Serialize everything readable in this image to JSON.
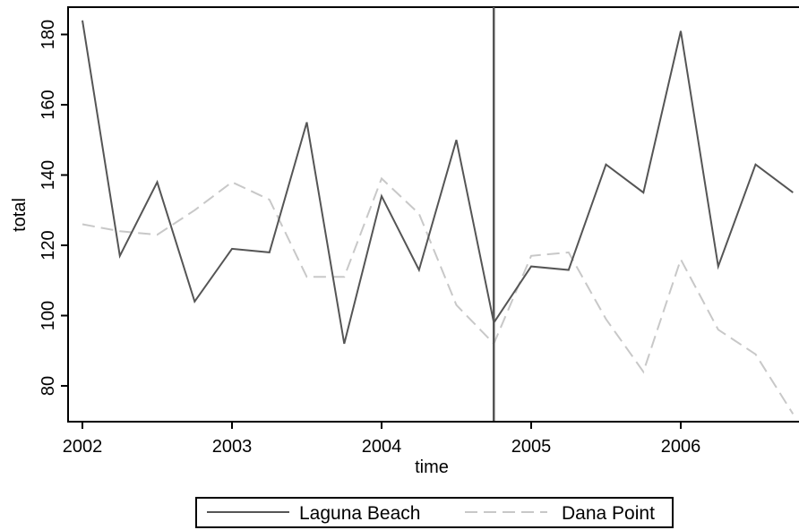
{
  "chart_data": {
    "type": "line",
    "xlabel": "time",
    "ylabel": "total",
    "xlim": [
      2002,
      2006.75
    ],
    "ylim": [
      69,
      188
    ],
    "x_ticks": [
      {
        "value": 2002,
        "label": "2002"
      },
      {
        "value": 2003,
        "label": "2003"
      },
      {
        "value": 2004,
        "label": "2004"
      },
      {
        "value": 2005,
        "label": "2005"
      },
      {
        "value": 2006,
        "label": "2006"
      }
    ],
    "y_ticks": [
      {
        "value": 80,
        "label": "80"
      },
      {
        "value": 100,
        "label": "100"
      },
      {
        "value": 120,
        "label": "120"
      },
      {
        "value": 140,
        "label": "140"
      },
      {
        "value": 160,
        "label": "160"
      },
      {
        "value": 180,
        "label": "180"
      }
    ],
    "x": [
      2002,
      2002.25,
      2002.5,
      2002.75,
      2003,
      2003.25,
      2003.5,
      2003.75,
      2004,
      2004.25,
      2004.5,
      2004.75,
      2005,
      2005.25,
      2005.5,
      2005.75,
      2006,
      2006.25,
      2006.5,
      2006.75
    ],
    "series": [
      {
        "name": "Laguna Beach",
        "color": "#555555",
        "dash": "solid",
        "values": [
          184,
          117,
          138,
          104,
          119,
          118,
          155,
          92,
          134,
          113,
          150,
          98,
          114,
          113,
          143,
          135,
          181,
          114,
          143,
          135
        ]
      },
      {
        "name": "Dana Point",
        "color": "#c8c8c8",
        "dash": "dashed",
        "values": [
          126,
          124,
          123,
          130,
          138,
          133,
          111,
          111,
          139,
          129,
          103,
          92,
          117,
          118,
          99,
          84,
          116,
          96,
          89,
          72
        ]
      }
    ],
    "vline": {
      "x": 2004.75,
      "color": "#555555"
    },
    "grid": false,
    "legend_position": "bottom"
  }
}
